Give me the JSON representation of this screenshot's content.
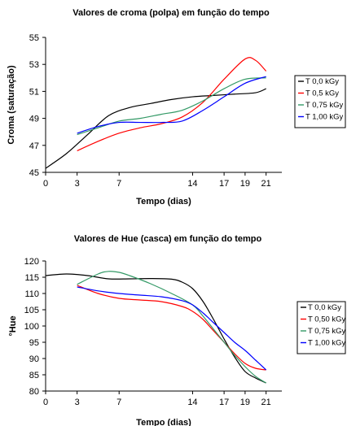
{
  "chart_data": [
    {
      "type": "line",
      "title": "Valores de croma (polpa) em função do tempo",
      "xlabel": "Tempo (dias)",
      "ylabel": "Croma (saturação)",
      "xlim": [
        0,
        22.5
      ],
      "ylim": [
        45,
        55
      ],
      "xticks": [
        0,
        3,
        7,
        14,
        17,
        19,
        21
      ],
      "xtick_labels": [
        "0",
        "3",
        "7",
        "14",
        "17",
        "19",
        "21"
      ],
      "yticks": [
        45,
        47,
        49,
        51,
        53,
        55
      ],
      "grid": false,
      "legend_position": "right",
      "series": [
        {
          "name": "T 0,0 kGy",
          "color": "#000000",
          "x": [
            0,
            2,
            4,
            6,
            8,
            10,
            12,
            14,
            16,
            18,
            20,
            21
          ],
          "y": [
            45.3,
            46.4,
            47.8,
            49.2,
            49.8,
            50.1,
            50.4,
            50.6,
            50.7,
            50.8,
            50.9,
            51.2
          ]
        },
        {
          "name": "T 0,5 kGy",
          "color": "#ff0000",
          "x": [
            3,
            5,
            7,
            9,
            11,
            13,
            15,
            17,
            19,
            20,
            21
          ],
          "y": [
            46.6,
            47.3,
            47.9,
            48.3,
            48.6,
            49.1,
            50.2,
            51.9,
            53.4,
            53.3,
            52.5
          ]
        },
        {
          "name": "T 0,75 kGy",
          "color": "#339966",
          "x": [
            3,
            5,
            7,
            9,
            11,
            13,
            15,
            17,
            19,
            21
          ],
          "y": [
            47.8,
            48.3,
            48.8,
            49.0,
            49.3,
            49.6,
            50.3,
            51.2,
            51.9,
            52.0
          ]
        },
        {
          "name": "T 1,00 kGy",
          "color": "#0000ff",
          "x": [
            3,
            5,
            7,
            9,
            11,
            13,
            15,
            17,
            19,
            21
          ],
          "y": [
            47.9,
            48.4,
            48.7,
            48.7,
            48.7,
            48.8,
            49.6,
            50.6,
            51.6,
            52.1
          ]
        }
      ]
    },
    {
      "type": "line",
      "title": "Valores de Hue (casca) em função do tempo",
      "xlabel": "Tempo (dias)",
      "ylabel": "°Hue",
      "xlim": [
        0,
        22.5
      ],
      "ylim": [
        80,
        120
      ],
      "xticks": [
        0,
        3,
        7,
        14,
        17,
        19,
        21
      ],
      "xtick_labels": [
        "0",
        "3",
        "7",
        "14",
        "17",
        "19",
        "21"
      ],
      "yticks": [
        80,
        85,
        90,
        95,
        100,
        105,
        110,
        115,
        120
      ],
      "grid": false,
      "legend_position": "right",
      "series": [
        {
          "name": "T 0,0 kGy",
          "color": "#000000",
          "x": [
            0,
            2,
            4,
            6,
            8,
            10,
            12,
            13,
            14,
            15,
            16,
            17,
            18,
            19,
            20,
            21
          ],
          "y": [
            115.5,
            116.0,
            115.5,
            114.5,
            114.5,
            114.6,
            114.4,
            113.5,
            111.5,
            107.5,
            102.0,
            96.0,
            90.5,
            86.0,
            84.0,
            82.5
          ]
        },
        {
          "name": "T 0,50 kGy",
          "color": "#ff0000",
          "x": [
            3,
            5,
            7,
            9,
            11,
            13,
            14,
            15,
            16,
            17,
            18,
            19,
            20,
            21
          ],
          "y": [
            112.5,
            110.0,
            108.5,
            108.0,
            107.5,
            106.0,
            104.5,
            102.0,
            98.5,
            95.0,
            91.5,
            88.5,
            87.0,
            86.5
          ]
        },
        {
          "name": "T 0,75 kGy",
          "color": "#339966",
          "x": [
            3,
            5,
            6,
            7,
            8,
            10,
            12,
            14,
            15,
            16,
            17,
            18,
            19,
            20,
            21
          ],
          "y": [
            112.8,
            116.0,
            116.8,
            116.5,
            115.5,
            113.0,
            110.0,
            106.5,
            103.0,
            99.0,
            95.0,
            91.0,
            87.5,
            84.5,
            82.5
          ]
        },
        {
          "name": "T 1,00 kGy",
          "color": "#0000ff",
          "x": [
            3,
            5,
            7,
            9,
            11,
            13,
            14,
            15,
            16,
            17,
            18,
            19,
            20,
            21
          ],
          "y": [
            112.0,
            110.8,
            110.0,
            109.5,
            109.0,
            107.8,
            106.5,
            104.0,
            101.0,
            98.0,
            95.0,
            92.5,
            89.5,
            86.5
          ]
        }
      ]
    }
  ]
}
